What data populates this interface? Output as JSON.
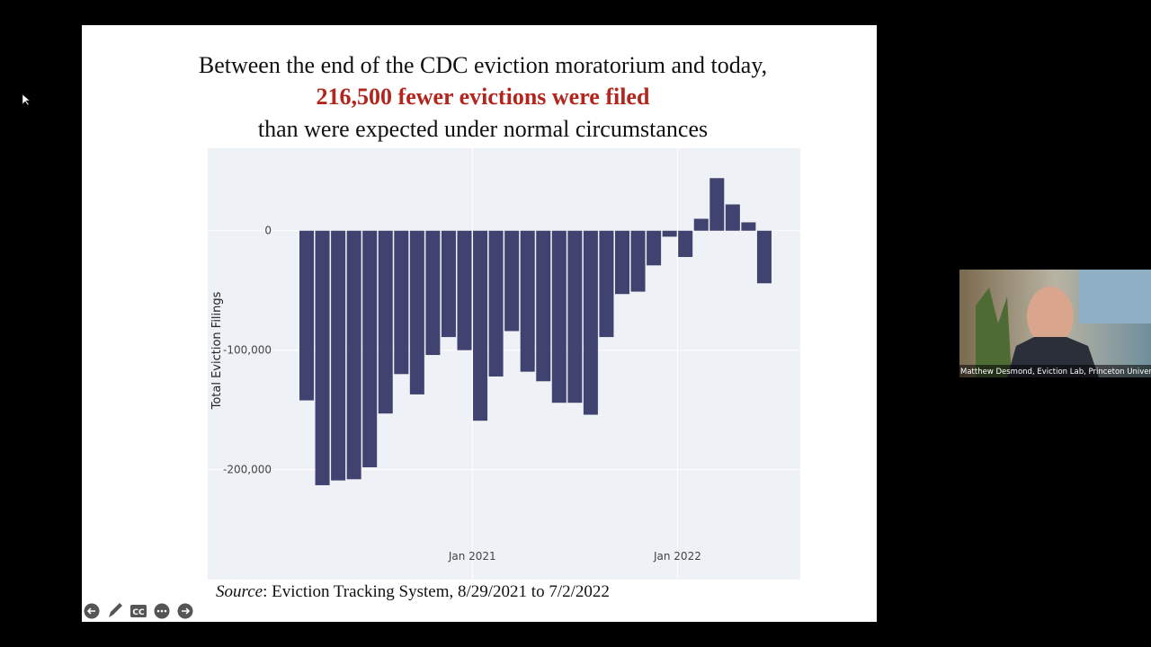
{
  "slide": {
    "title_line1": "Between the end of the CDC eviction moratorium and today,",
    "title_line2": "216,500 fewer evictions were filed",
    "title_line3": "than were expected under normal circumstances",
    "source_label": "Source",
    "source_text": ": Eviction Tracking System, 8/29/2021 to 7/2/2022"
  },
  "chart_data": {
    "type": "bar",
    "y_label": "Total Eviction Filings",
    "color": "#40426f",
    "grid": true,
    "categories": [
      null,
      null,
      null,
      null,
      null,
      null,
      null,
      null,
      null,
      null,
      null,
      null,
      null,
      null,
      null,
      null,
      null,
      null,
      null,
      null,
      null,
      null,
      null,
      null,
      null,
      null,
      null,
      null,
      null,
      null
    ],
    "values": [
      -142000,
      -213000,
      -209000,
      -208000,
      -198000,
      -153000,
      -120000,
      -137000,
      -104000,
      -89000,
      -100000,
      -159000,
      -122000,
      -84000,
      -118000,
      -126000,
      -144000,
      -144000,
      -154000,
      -89000,
      -53000,
      -51000,
      -29000,
      -5000,
      -22000,
      10000,
      44000,
      22000,
      7000,
      -44000
    ],
    "ylim": [
      -292000,
      69000
    ],
    "yticks": [
      {
        "value": -200000,
        "label": "-200,000"
      },
      {
        "value": -100000,
        "label": "-100,000"
      },
      0
    ],
    "xticks": [
      {
        "value": 10.5,
        "label": "Jan 2021"
      },
      {
        "value": 23.5,
        "label": "Jan 2022"
      }
    ]
  },
  "webcam": {
    "caption": "Matthew Desmond, Eviction Lab, Princeton University"
  },
  "toolbar": {
    "cc": "CC"
  }
}
